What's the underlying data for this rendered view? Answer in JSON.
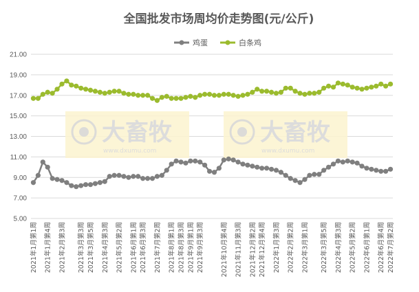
{
  "chart_data": {
    "type": "line",
    "title": "全国批发市场周均价走势图(元/公斤)",
    "xlabel": "",
    "ylabel": "",
    "ylim": [
      5.0,
      21.0
    ],
    "yticks": [
      "5.00",
      "7.00",
      "9.00",
      "11.00",
      "13.00",
      "15.00",
      "17.00",
      "19.00",
      "21.00"
    ],
    "grid": true,
    "legend_position": "top",
    "x": [
      "2021年1月第1周",
      "2021年1月第2周",
      "2021年1月第3周",
      "2021年1月第4周",
      "2021年2月第1周",
      "2021年2月第2周",
      "2021年2月第3周",
      "2021年2月第4周",
      "2021年3月第1周",
      "2021年3月第2周",
      "2021年3月第3周",
      "2021年3月第4周",
      "2021年3月第5周",
      "2021年4月第1周",
      "2021年4月第2周",
      "2021年4月第3周",
      "2021年4月第4周",
      "2021年5月第1周",
      "2021年5月第2周",
      "2021年5月第3周",
      "2021年5月第4周",
      "2021年6月第1周",
      "2021年6月第2周",
      "2021年6月第3周",
      "2021年6月第4周",
      "2021年7月第1周",
      "2021年7月第2周",
      "2021年7月第3周",
      "2021年7月第4周",
      "2021年8月第1周",
      "2021年8月第2周",
      "2021年8月第3周",
      "2021年8月第4周",
      "2021年9月第1周",
      "2021年9月第2周",
      "2021年9月第3周",
      "2021年9月第4周",
      "2021年10月第1周",
      "2021年10月第2周",
      "2021年10月第3周",
      "2021年10月第4周",
      "2021年11月第1周",
      "2021年11月第2周",
      "2021年11月第3周",
      "2021年11月第4周",
      "2021年12月第1周",
      "2021年12月第2周",
      "2021年12月第3周",
      "2021年12月第4周",
      "2022年1月第1周",
      "2022年1月第2周",
      "2022年1月第3周",
      "2022年1月第4周",
      "2022年2月第1周",
      "2022年2月第2周",
      "2022年2月第3周",
      "2022年2月第4周",
      "2022年3月第1周",
      "2022年3月第2周",
      "2022年3月第3周",
      "2022年3月第4周",
      "2022年3月第5周",
      "2022年4月第1周",
      "2022年4月第2周",
      "2022年4月第3周",
      "2022年4月第4周",
      "2022年5月第1周",
      "2022年5月第2周",
      "2022年5月第3周",
      "2022年5月第4周",
      "2022年6月第1周",
      "2022年6月第2周",
      "2022年6月第3周",
      "2022年6月第4周",
      "2022年7月第1周",
      "2022年7月第2周"
    ],
    "x_tick_labels": [
      "2021年1月第1周",
      "2021年1月第4周",
      "2021年2月第3周",
      "2021年3月第3周",
      "2021年3月第5周",
      "2021年4月第3周",
      "2021年5月第2周",
      "2021年6月第1周",
      "2021年6月第3周",
      "2021年7月第2周",
      "2021年8月第1周",
      "2021年8月第3周",
      "2021年9月第1周",
      "2021年9月第3周",
      "2021年10月第4周",
      "2021年11月第3周",
      "2021年12月第2周",
      "2021年12月第4周",
      "2022年1月第3周",
      "2022年2月第2周",
      "2022年3月第1周",
      "2022年3月第5周",
      "2022年4月第3周",
      "2022年5月第2周",
      "2022年6月第1周",
      "2022年6月第4周",
      "2022年7月第2周"
    ],
    "series": [
      {
        "name": "鸡蛋",
        "color": "#7f7f7f",
        "values": [
          8.5,
          9.2,
          10.5,
          10.0,
          8.9,
          8.8,
          8.7,
          8.5,
          8.2,
          8.1,
          8.2,
          8.3,
          8.3,
          8.4,
          8.5,
          8.6,
          9.1,
          9.2,
          9.2,
          9.1,
          9.0,
          9.1,
          9.1,
          8.9,
          8.9,
          8.9,
          9.1,
          9.2,
          9.7,
          10.3,
          10.6,
          10.5,
          10.4,
          10.6,
          10.6,
          10.5,
          10.2,
          9.6,
          9.5,
          9.9,
          10.7,
          10.8,
          10.7,
          10.5,
          10.3,
          10.2,
          10.1,
          10.0,
          9.9,
          9.9,
          9.8,
          9.7,
          9.5,
          9.2,
          8.9,
          8.7,
          8.5,
          8.8,
          9.2,
          9.3,
          9.3,
          9.7,
          10.0,
          10.3,
          10.6,
          10.5,
          10.6,
          10.5,
          10.4,
          10.1,
          9.9,
          9.8,
          9.7,
          9.6,
          9.6,
          9.8
        ]
      },
      {
        "name": "白条鸡",
        "color": "#9bbb2e",
        "values": [
          16.7,
          16.7,
          17.1,
          17.3,
          17.2,
          17.6,
          18.1,
          18.4,
          18.0,
          17.9,
          17.7,
          17.6,
          17.5,
          17.4,
          17.3,
          17.2,
          17.3,
          17.4,
          17.4,
          17.2,
          17.1,
          17.1,
          17.0,
          17.0,
          17.0,
          16.7,
          16.5,
          16.8,
          16.9,
          16.7,
          16.7,
          16.7,
          16.8,
          16.9,
          16.8,
          17.0,
          17.1,
          17.1,
          17.0,
          17.0,
          17.1,
          17.1,
          17.0,
          16.9,
          17.0,
          17.1,
          17.3,
          17.6,
          17.4,
          17.4,
          17.3,
          17.2,
          17.3,
          17.7,
          17.7,
          17.4,
          17.2,
          17.1,
          17.2,
          17.2,
          17.3,
          17.7,
          17.9,
          17.8,
          18.2,
          18.1,
          18.0,
          17.8,
          17.7,
          17.6,
          17.7,
          17.8,
          17.9,
          18.1,
          17.9,
          18.1
        ]
      }
    ]
  },
  "watermark": {
    "brand": "大畜牧",
    "url": "www.dxumu.com"
  }
}
